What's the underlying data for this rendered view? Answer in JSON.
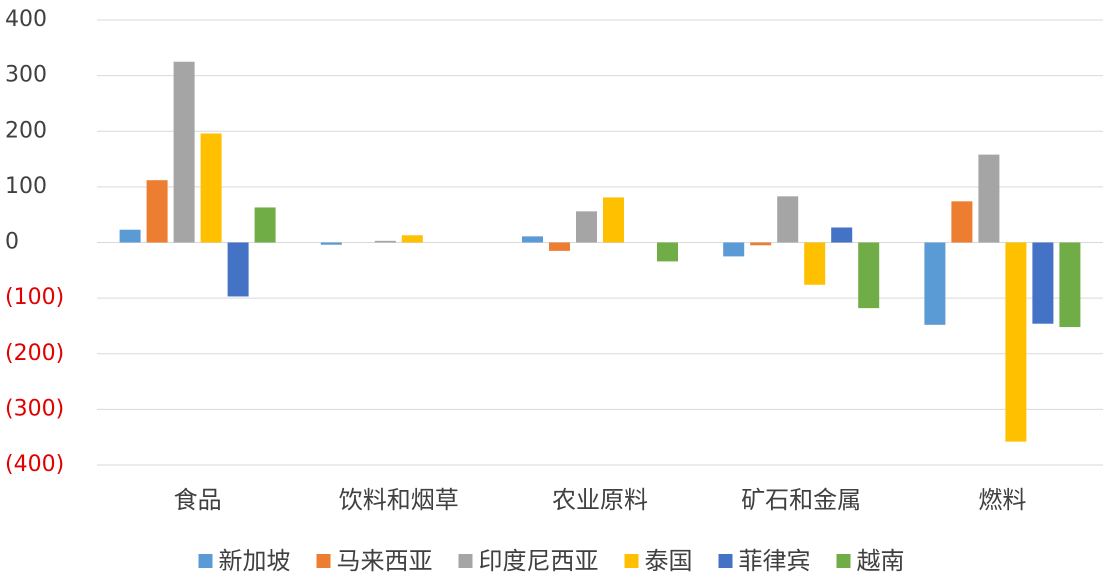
{
  "chart_data": {
    "type": "bar",
    "categories": [
      "食品",
      "饮料和烟草",
      "农业原料",
      "矿石和金属",
      "燃料"
    ],
    "series": [
      {
        "name": "新加坡",
        "color": "#5b9bd5",
        "values": [
          23,
          -4,
          11,
          -25,
          -148
        ]
      },
      {
        "name": "马来西亚",
        "color": "#ed7d31",
        "values": [
          112,
          0,
          -15,
          -5,
          74
        ]
      },
      {
        "name": "印度尼西亚",
        "color": "#a5a5a5",
        "values": [
          325,
          3,
          56,
          83,
          158
        ]
      },
      {
        "name": "泰国",
        "color": "#ffc000",
        "values": [
          196,
          13,
          81,
          -76,
          -358
        ]
      },
      {
        "name": "菲律宾",
        "color": "#4472c4",
        "values": [
          -97,
          0,
          0,
          27,
          -146
        ]
      },
      {
        "name": "越南",
        "color": "#70ad47",
        "values": [
          63,
          0,
          -34,
          -118,
          -152
        ]
      }
    ],
    "ylim": [
      -400,
      400
    ],
    "yticks": [
      400,
      300,
      200,
      100,
      0,
      {
        "value": -100,
        "label": "(100)"
      },
      {
        "value": -200,
        "label": "(200)"
      },
      {
        "value": -300,
        "label": "(300)"
      },
      {
        "value": -400,
        "label": "(400)"
      }
    ],
    "negative_tick_color": "#e00000",
    "grid": true,
    "legend": "bottom"
  }
}
